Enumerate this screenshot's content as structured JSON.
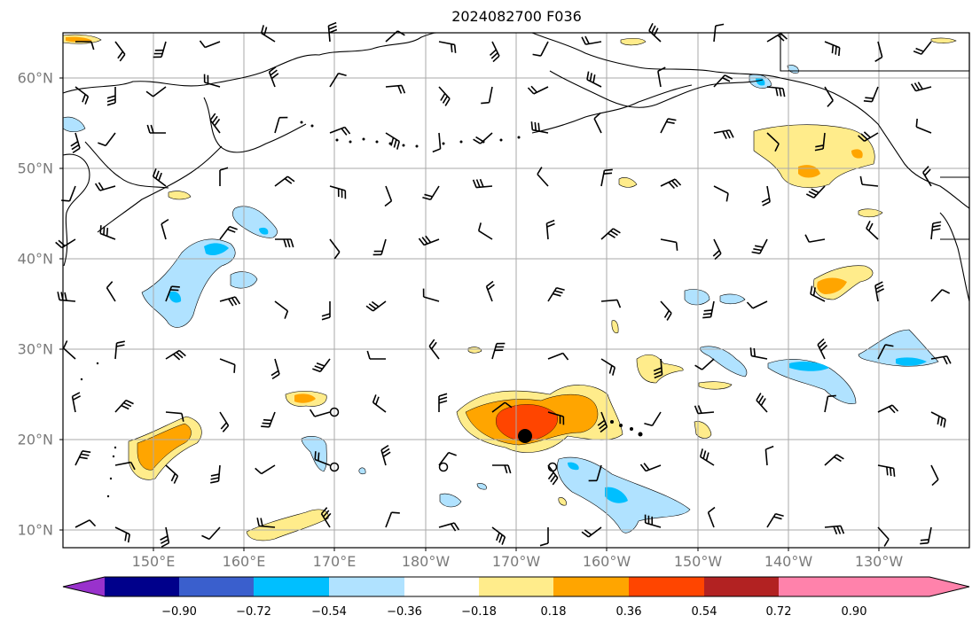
{
  "title": "2024082700 F036",
  "lat_labels": [
    "60°N",
    "50°N",
    "40°N",
    "30°N",
    "20°N",
    "10°N"
  ],
  "lon_labels": [
    "150°E",
    "160°E",
    "170°E",
    "180°W",
    "170°W",
    "160°W",
    "150°W",
    "140°W",
    "130°W"
  ],
  "colorbar": {
    "ticks": [
      "−0.90",
      "−0.72",
      "−0.54",
      "−0.36",
      "−0.18",
      "0.18",
      "0.36",
      "0.54",
      "0.72",
      "0.90"
    ],
    "colors": [
      "#9932CC",
      "#00008B",
      "#3A5FCD",
      "#00BFFF",
      "#B0E2FF",
      "#FFFFFF",
      "#FFEC8B",
      "#FFA500",
      "#FF4500",
      "#B22222",
      "#FF82AB"
    ]
  },
  "map": {
    "projection": "equirectangular",
    "lat_range": [
      8,
      65
    ],
    "lon_range": [
      140,
      242
    ],
    "gridlines": true,
    "storm_marker": "filled black dot near 20.5°N 169°W"
  }
}
